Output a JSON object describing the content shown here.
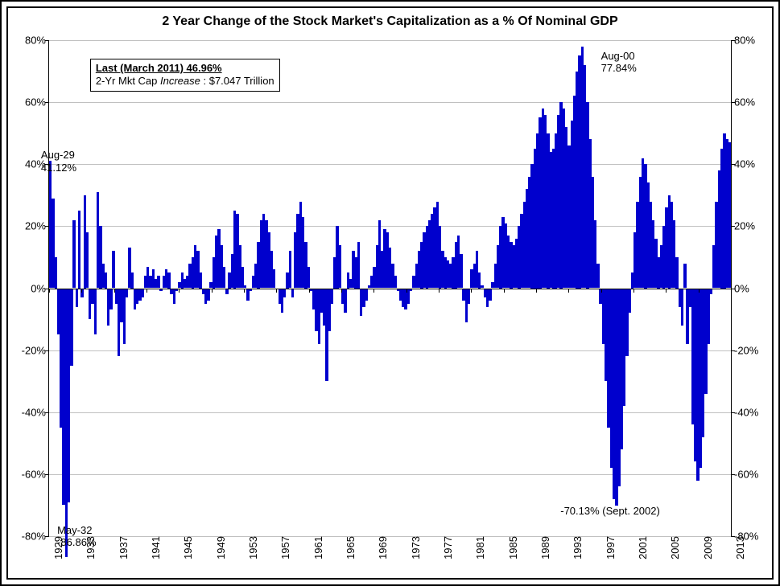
{
  "title": "2 Year Change of the Stock Market's Capitalization as a % Of Nominal GDP",
  "title_fontsize": 16,
  "background_color": "#ffffff",
  "border_color": "#000000",
  "grid_color": "#c0c0c0",
  "bar_color": "#0000cd",
  "ylim": [
    -80,
    80
  ],
  "ytick_step": 20,
  "yticks": [
    -80,
    -60,
    -40,
    -20,
    0,
    20,
    40,
    60,
    80
  ],
  "ytick_labels": [
    "-80%",
    "-60%",
    "-40%",
    "-20%",
    "0%",
    "20%",
    "40%",
    "60%",
    "80%"
  ],
  "info_box": {
    "line1": "Last (March 2011) 46.96%",
    "line2_pre": "2-Yr Mkt Cap ",
    "line2_ital": "Increase",
    "line2_post": " : $7.047 Trillion"
  },
  "annotations": [
    {
      "id": "ann-aug29",
      "lines": [
        "Aug-29",
        "41.12%"
      ],
      "x_year": 1928.0,
      "y_val": 45
    },
    {
      "id": "ann-may32",
      "lines": [
        "May-32",
        "-86.86%"
      ],
      "x_year": 1930.0,
      "y_val": -76
    },
    {
      "id": "ann-aug00",
      "lines": [
        "Aug-00",
        "77.84%"
      ],
      "x_year": 1997.0,
      "y_val": 77
    },
    {
      "id": "ann-sep02",
      "lines": [
        "-70.13% (Sept. 2002)"
      ],
      "x_year": 1992.0,
      "y_val": -70,
      "align": "right"
    }
  ],
  "x_start": 1929,
  "x_end": 2013,
  "xtick_step": 4,
  "values": [
    41.12,
    29,
    10,
    -15,
    -45,
    -70,
    -86.86,
    -69,
    -25,
    22,
    -6,
    25,
    -3,
    30,
    18,
    -10,
    -5,
    -15,
    31,
    20,
    8,
    5,
    -12,
    -7,
    12,
    -5,
    -22,
    -11,
    -18,
    -3,
    13,
    5,
    -7,
    -5,
    -4,
    -3,
    4,
    7,
    4,
    6,
    3,
    4,
    -1,
    4,
    6,
    5,
    -2,
    -5,
    -1,
    2,
    5,
    3,
    4,
    8,
    10,
    14,
    12,
    5,
    -2,
    -5,
    -4,
    2,
    10,
    17,
    19,
    14,
    7,
    -2,
    5,
    11,
    25,
    24,
    14,
    7,
    1,
    -4,
    -1,
    4,
    8,
    15,
    22,
    24,
    22,
    18,
    12,
    6,
    0,
    -5,
    -8,
    -3,
    5,
    12,
    -3,
    18,
    24,
    28,
    23,
    15,
    7,
    -1,
    -7,
    -14,
    -18,
    -8,
    -12,
    -30,
    -14,
    -5,
    10,
    20,
    14,
    -5,
    -8,
    5,
    3,
    12,
    10,
    15,
    -9,
    -6,
    -4,
    1,
    4,
    7,
    14,
    22,
    12,
    19,
    18,
    13,
    8,
    4,
    -1,
    -4,
    -6,
    -7,
    -5,
    -1,
    4,
    8,
    12,
    15,
    18,
    20,
    22,
    24,
    26,
    28,
    20,
    12,
    10,
    9,
    8,
    10,
    15,
    17,
    11,
    -4,
    -11,
    -5,
    6,
    8,
    12,
    5,
    1,
    -3,
    -6,
    -4,
    2,
    8,
    14,
    20,
    23,
    21,
    17,
    15,
    14,
    16,
    20,
    24,
    28,
    32,
    36,
    40,
    45,
    50,
    55,
    58,
    56,
    50,
    44,
    45,
    50,
    56,
    60,
    58,
    52,
    46,
    54,
    62,
    70,
    75,
    77.84,
    72,
    60,
    48,
    36,
    22,
    8,
    -5,
    -18,
    -30,
    -45,
    -58,
    -68,
    -70.13,
    -64,
    -52,
    -38,
    -22,
    -8,
    5,
    18,
    28,
    36,
    42,
    40,
    34,
    28,
    22,
    16,
    10,
    14,
    20,
    26,
    30,
    28,
    22,
    10,
    -6,
    -12,
    8,
    -18,
    -6,
    -44,
    -56,
    -62,
    -58,
    -48,
    -34,
    -18,
    -2,
    14,
    28,
    38,
    45,
    50,
    48,
    46.96
  ]
}
